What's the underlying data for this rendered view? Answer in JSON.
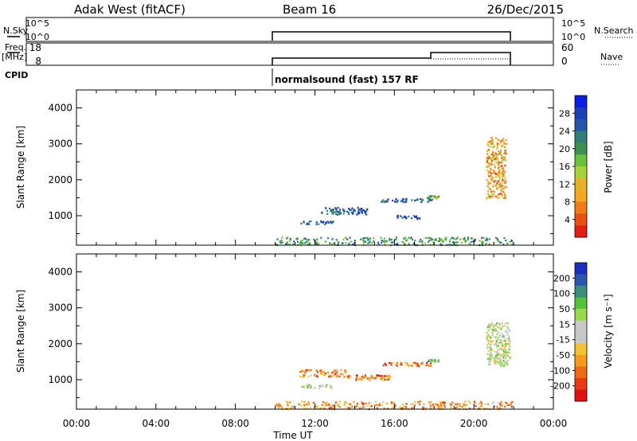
{
  "header": {
    "station": "Adak West (fitACF)",
    "beam": "Beam 16",
    "date": "26/Dec/2015"
  },
  "status_panels": {
    "nsky_label": "N.Sky",
    "nsky_ticks": [
      "10^5",
      "10^0"
    ],
    "nsearch_label": "N.Search",
    "nsearch_ticks": [
      "10^5",
      "10^0"
    ],
    "freq_label": "Freq.",
    "freq_unit": "[MHz]",
    "freq_ticks": [
      "18",
      "8"
    ],
    "nave_label": "Nave",
    "nave_ticks": [
      "60",
      "0"
    ],
    "cpid_label": "CPID",
    "cpid_text": "normalsound (fast) 157 RF"
  },
  "chart_data": [
    {
      "type": "heatmap",
      "name": "power",
      "ylabel": "Slant Range [km]",
      "xlabel": "",
      "x_range_hours": [
        0,
        24
      ],
      "ylim": [
        180,
        4500
      ],
      "yticks": [
        1000,
        2000,
        3000,
        4000
      ],
      "colorbar": {
        "label": "Power [dB]",
        "ticks": [
          "28",
          "24",
          "20",
          "16",
          "12",
          "8",
          "4"
        ],
        "colors": [
          "#0a1ee6",
          "#1c3fb8",
          "#2455a8",
          "#2f7f77",
          "#3f8f4f",
          "#68c23a",
          "#a6d23c",
          "#e4b22a",
          "#f5a623",
          "#f07b18",
          "#ea4f14",
          "#e02012"
        ]
      },
      "echo_regions": [
        {
          "t": [
            12.3,
            14.6
          ],
          "r": [
            1050,
            1250
          ],
          "level": 2
        },
        {
          "t": [
            11.2,
            12.9
          ],
          "r": [
            780,
            880
          ],
          "level": 2
        },
        {
          "t": [
            15.3,
            17.9
          ],
          "r": [
            1400,
            1500
          ],
          "level": 2
        },
        {
          "t": [
            16.1,
            17.3
          ],
          "r": [
            930,
            1030
          ],
          "level": 2
        },
        {
          "t": [
            17.6,
            18.2
          ],
          "r": [
            1500,
            1580
          ],
          "level": 5
        },
        {
          "t": [
            20.6,
            21.6
          ],
          "r": [
            1500,
            3200
          ],
          "level": 8
        },
        {
          "t": [
            10.0,
            21.9
          ],
          "r": [
            200,
            420
          ],
          "level": 4
        }
      ]
    },
    {
      "type": "heatmap",
      "name": "velocity",
      "ylabel": "Slant Range [km]",
      "xlabel": "Time UT",
      "x_range_hours": [
        0,
        24
      ],
      "xticks": [
        "00:00",
        "04:00",
        "08:00",
        "12:00",
        "16:00",
        "20:00",
        "00:00"
      ],
      "ylim": [
        180,
        4500
      ],
      "yticks": [
        1000,
        2000,
        3000,
        4000
      ],
      "colorbar": {
        "label": "Velocity [m s⁻¹]",
        "ticks": [
          "200",
          "100",
          "50",
          "15",
          "-15",
          "-50",
          "-100",
          "-200"
        ],
        "colors": [
          "#1a2fc0",
          "#2a57b0",
          "#3b8e7a",
          "#53c33a",
          "#9ad94a",
          "#c8c8c8",
          "#c8c8c8",
          "#f4c230",
          "#f59a1a",
          "#ef6a14",
          "#e83a12",
          "#e01010"
        ]
      },
      "echo_regions": [
        {
          "t": [
            11.2,
            13.6
          ],
          "r": [
            1100,
            1300
          ],
          "level": 8
        },
        {
          "t": [
            11.2,
            12.8
          ],
          "r": [
            780,
            880
          ],
          "level": 4
        },
        {
          "t": [
            13.4,
            15.8
          ],
          "r": [
            1000,
            1150
          ],
          "level": 9
        },
        {
          "t": [
            15.4,
            17.9
          ],
          "r": [
            1400,
            1500
          ],
          "level": 9
        },
        {
          "t": [
            17.6,
            18.2
          ],
          "r": [
            1500,
            1580
          ],
          "level": 3
        },
        {
          "t": [
            20.6,
            21.8
          ],
          "r": [
            1400,
            2600
          ],
          "level": 5
        },
        {
          "t": [
            10.0,
            21.9
          ],
          "r": [
            200,
            420
          ],
          "level": 8
        }
      ]
    }
  ]
}
